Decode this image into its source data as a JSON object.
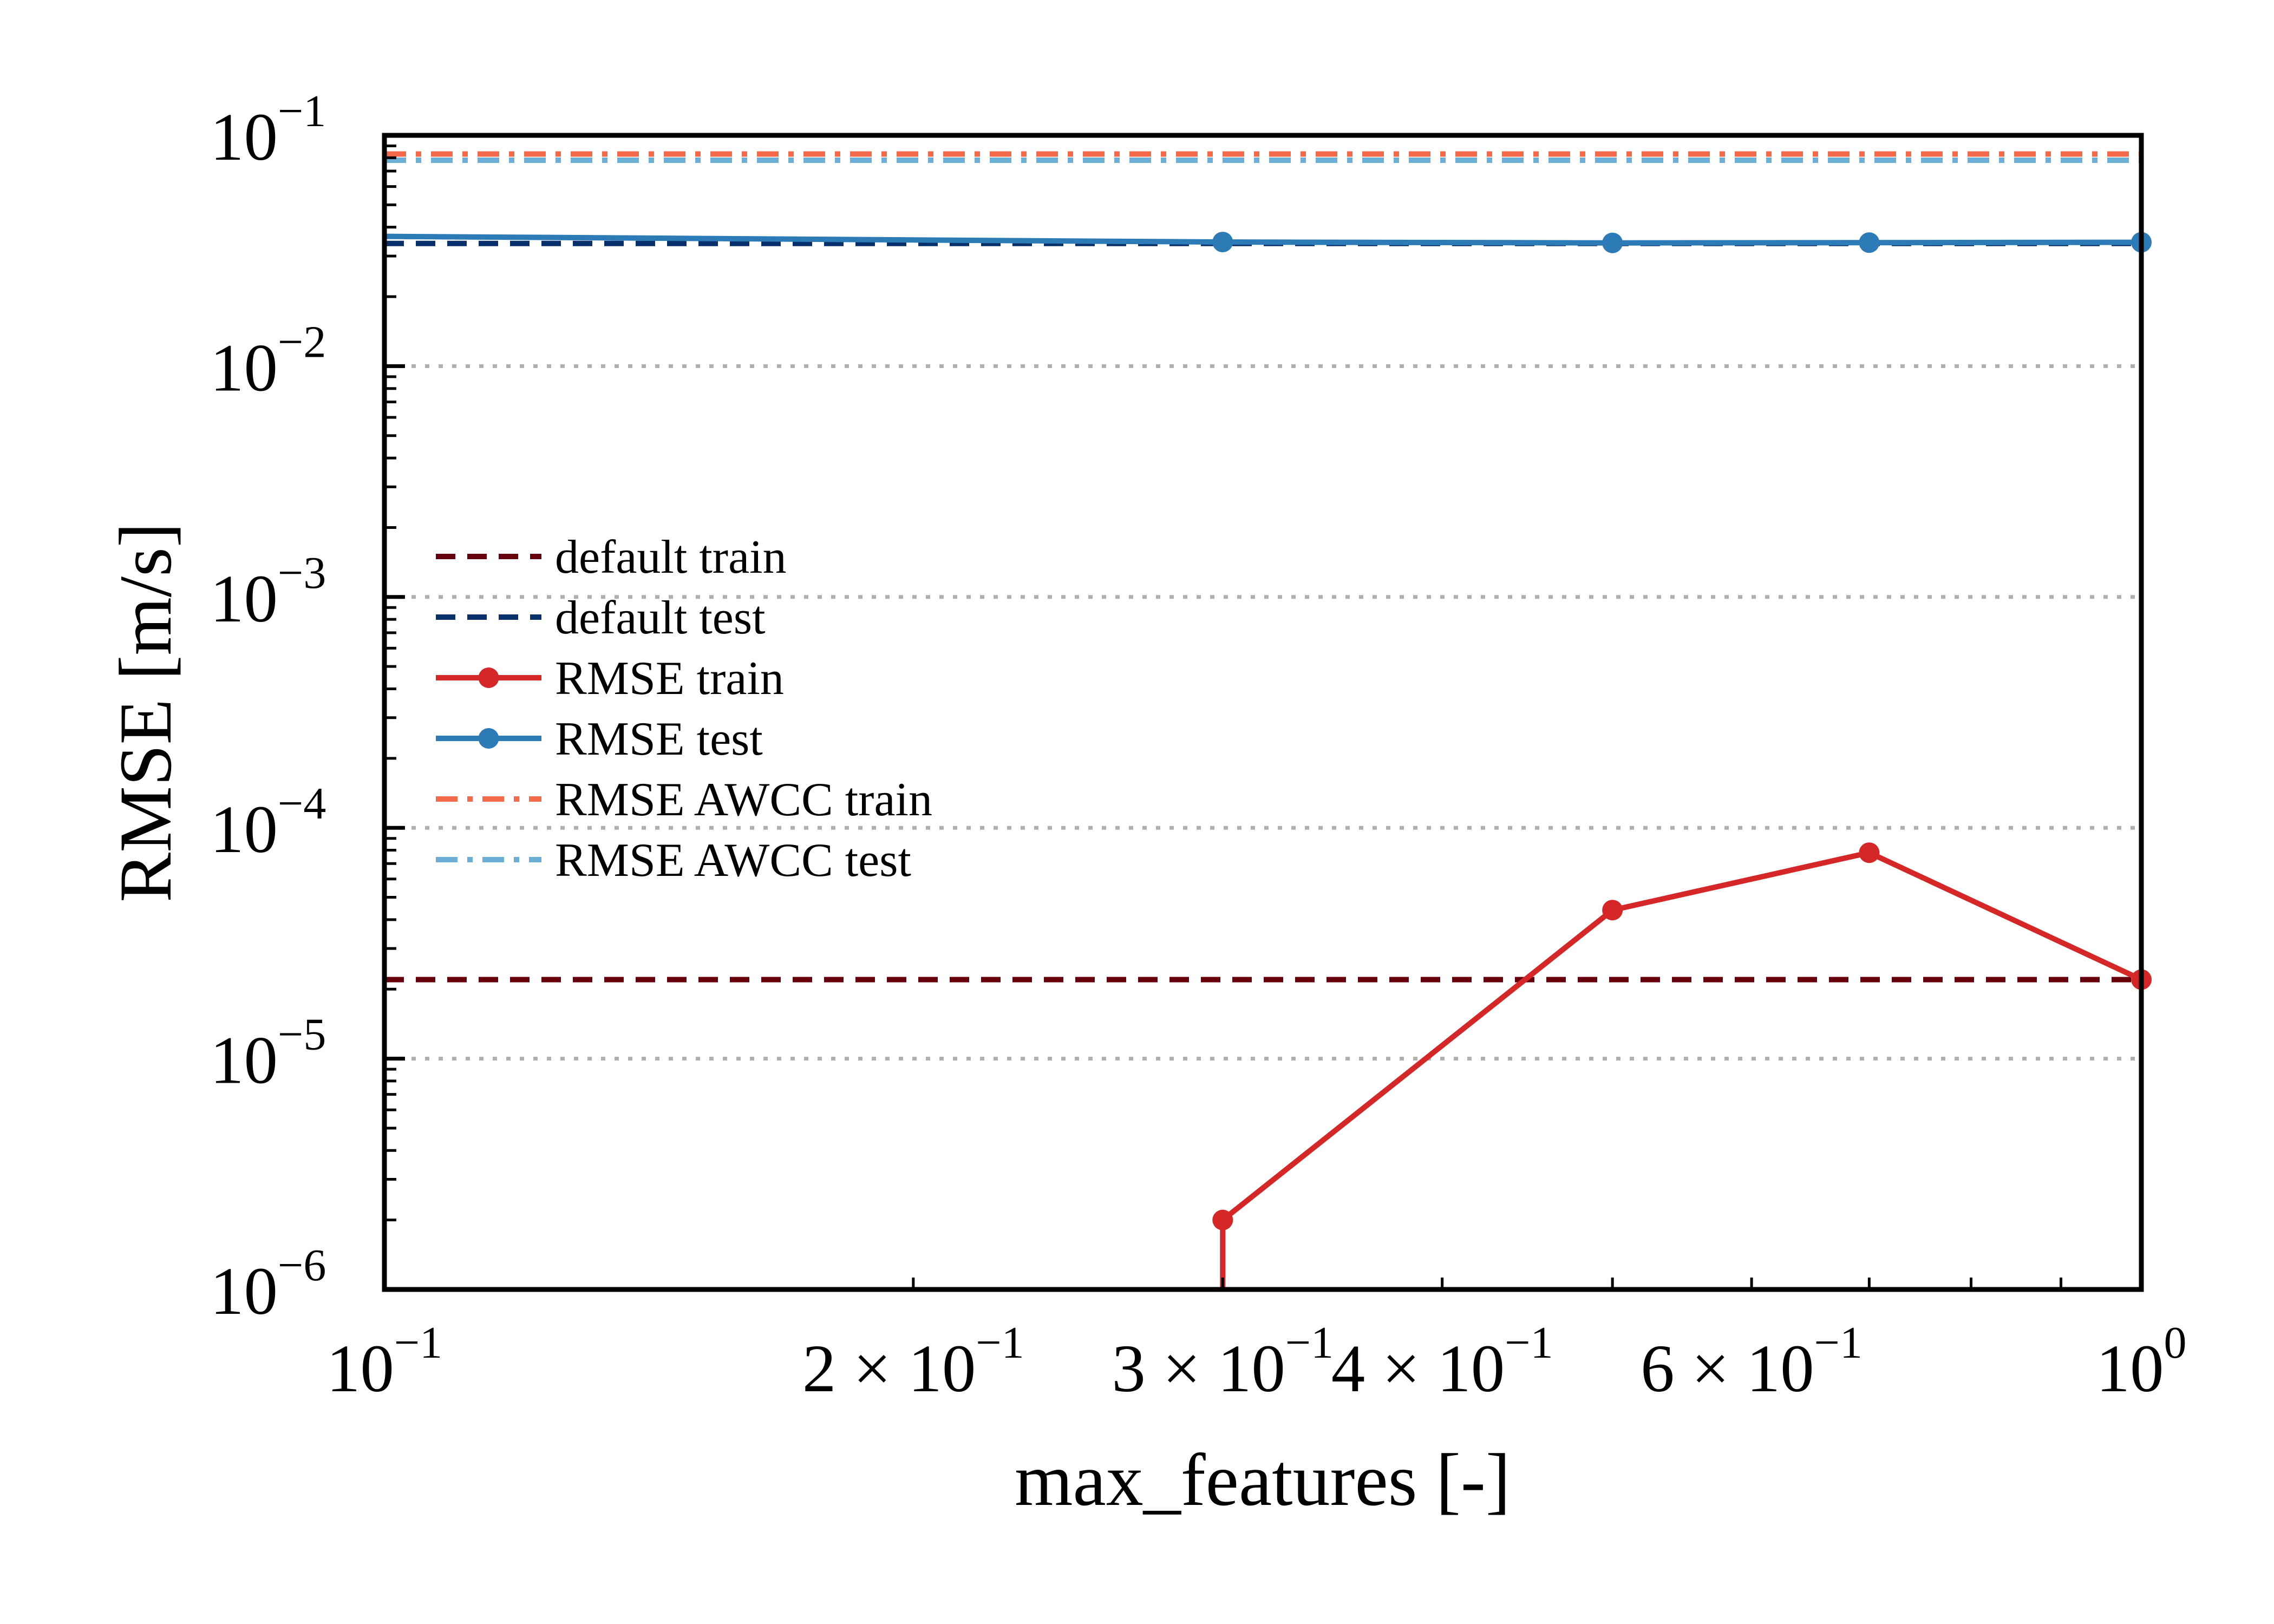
{
  "chart_data": {
    "type": "line",
    "title": "",
    "xlabel": "max_features [-]",
    "ylabel": "RMSE [m/s]",
    "xscale": "log",
    "yscale": "log",
    "xlim": [
      0.1,
      1.0
    ],
    "ylim": [
      1e-06,
      0.1
    ],
    "grid": "horizontal dotted at y major ticks",
    "legend_position": "center-left",
    "x_tick_labels": [
      {
        "value": 0.1,
        "mant": "",
        "base": "10",
        "exp": "−1"
      },
      {
        "value": 0.2,
        "mant": "2 × ",
        "base": "10",
        "exp": "−1"
      },
      {
        "value": 0.3,
        "mant": "3 × ",
        "base": "10",
        "exp": "−1"
      },
      {
        "value": 0.4,
        "mant": "4 × ",
        "base": "10",
        "exp": "−1"
      },
      {
        "value": 0.6,
        "mant": "6 × ",
        "base": "10",
        "exp": "−1"
      },
      {
        "value": 1.0,
        "mant": "",
        "base": "10",
        "exp": "0"
      }
    ],
    "y_tick_labels": [
      {
        "value": 1e-06,
        "base": "10",
        "exp": "−6"
      },
      {
        "value": 1e-05,
        "base": "10",
        "exp": "−5"
      },
      {
        "value": 0.0001,
        "base": "10",
        "exp": "−4"
      },
      {
        "value": 0.001,
        "base": "10",
        "exp": "−3"
      },
      {
        "value": 0.01,
        "base": "10",
        "exp": "−2"
      },
      {
        "value": 0.1,
        "base": "10",
        "exp": "−1"
      }
    ],
    "series": [
      {
        "name": "default train",
        "style": "dashed",
        "color": "#67000d",
        "markers": false,
        "x": [
          0.1,
          1.0
        ],
        "y": [
          2.2e-05,
          2.2e-05
        ]
      },
      {
        "name": "default test",
        "style": "dashed",
        "color": "#08306b",
        "markers": false,
        "x": [
          0.1,
          1.0
        ],
        "y": [
          0.034,
          0.034
        ]
      },
      {
        "name": "RMSE train",
        "style": "solid",
        "color": "#d62728",
        "markers": true,
        "x": [
          0.3,
          0.3,
          0.5,
          0.7,
          1.0
        ],
        "y": [
          8e-07,
          2e-06,
          4.4e-05,
          7.8e-05,
          2.2e-05
        ],
        "marker_points": [
          1,
          2,
          3,
          4
        ]
      },
      {
        "name": "RMSE test",
        "style": "solid",
        "color": "#2c7bb6",
        "markers": true,
        "x": [
          0.1,
          0.3,
          0.5,
          0.7,
          1.0
        ],
        "y": [
          0.0365,
          0.0345,
          0.0342,
          0.0343,
          0.0344
        ],
        "marker_points": [
          1,
          2,
          3,
          4
        ]
      },
      {
        "name": "RMSE AWCC train",
        "style": "dashdot",
        "color": "#f4694a",
        "markers": false,
        "x": [
          0.1,
          1.0
        ],
        "y": [
          0.083,
          0.083
        ]
      },
      {
        "name": "RMSE AWCC test",
        "style": "dashdot",
        "color": "#6baed6",
        "markers": false,
        "x": [
          0.1,
          1.0
        ],
        "y": [
          0.078,
          0.078
        ]
      }
    ]
  }
}
